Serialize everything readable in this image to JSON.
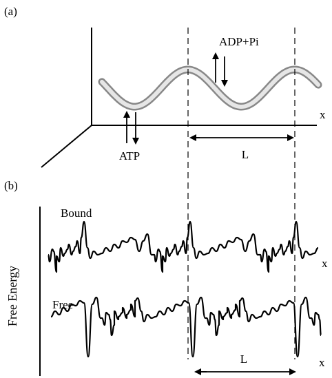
{
  "panel_a": {
    "label": "(a)",
    "release_label": "ADP+Pi",
    "binding_label": "ATP",
    "period_label": "L",
    "axis_label": "x"
  },
  "panel_b": {
    "label": "(b)",
    "y_axis_label": "Free Energy",
    "period_label": "L",
    "curves": [
      {
        "name": "Bound",
        "axis_label": "x"
      },
      {
        "name": "Free",
        "axis_label": "x"
      }
    ]
  }
}
